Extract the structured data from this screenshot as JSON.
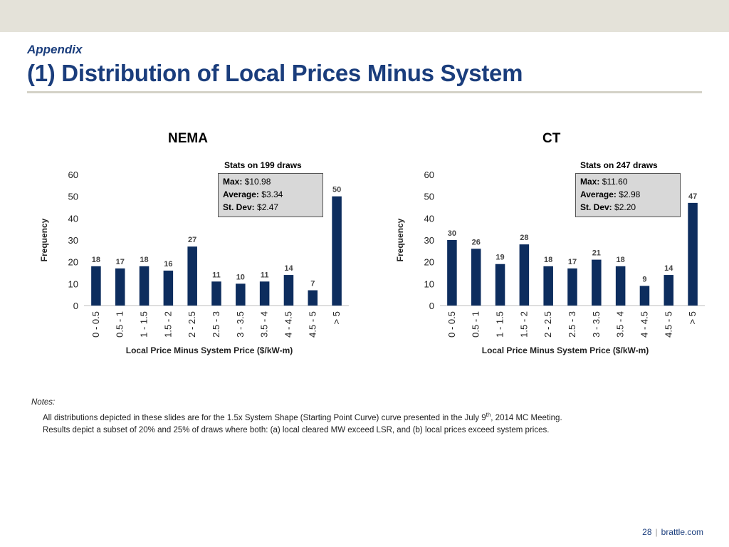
{
  "header": {
    "section": "Appendix",
    "title": "(1) Distribution of Local Prices Minus System"
  },
  "chart_data": [
    {
      "type": "bar",
      "title": "NEMA",
      "stats_caption": "Stats on 199 draws",
      "stats": [
        {
          "label": "Max:",
          "value": "$10.98"
        },
        {
          "label": "Average:",
          "value": "$3.34"
        },
        {
          "label": "St. Dev:",
          "value": "$2.47"
        }
      ],
      "categories": [
        "0 - 0.5",
        "0.5 - 1",
        "1 - 1.5",
        "1.5 - 2",
        "2 - 2.5",
        "2.5 - 3",
        "3 - 3.5",
        "3.5 - 4",
        "4 - 4.5",
        "4.5 - 5",
        "> 5"
      ],
      "values": [
        18,
        17,
        18,
        16,
        27,
        11,
        10,
        11,
        14,
        7,
        50
      ],
      "xlabel": "Local Price Minus System Price ($/kW-m)",
      "ylabel": "Frequency",
      "ylim": [
        0,
        60
      ],
      "yticks": [
        0,
        10,
        20,
        30,
        40,
        50,
        60
      ],
      "bar_color": "#0d2d5e",
      "grid": false
    },
    {
      "type": "bar",
      "title": "CT",
      "stats_caption": "Stats on 247 draws",
      "stats": [
        {
          "label": "Max:",
          "value": "$11.60"
        },
        {
          "label": "Average:",
          "value": "$2.98"
        },
        {
          "label": "St. Dev:",
          "value": "$2.20"
        }
      ],
      "categories": [
        "0 - 0.5",
        "0.5 - 1",
        "1 - 1.5",
        "1.5 - 2",
        "2 - 2.5",
        "2.5 - 3",
        "3 - 3.5",
        "3.5 - 4",
        "4 - 4.5",
        "4.5 - 5",
        "> 5"
      ],
      "values": [
        30,
        26,
        19,
        28,
        18,
        17,
        21,
        18,
        9,
        14,
        47
      ],
      "xlabel": "Local Price Minus System Price ($/kW-m)",
      "ylabel": "Frequency",
      "ylim": [
        0,
        60
      ],
      "yticks": [
        0,
        10,
        20,
        30,
        40,
        50,
        60
      ],
      "bar_color": "#0d2d5e",
      "grid": false
    }
  ],
  "notes": {
    "heading": "Notes:",
    "line1_before": "All distributions depicted in these slides are for the 1.5x System Shape (Starting Point Curve) curve presented in the July 9",
    "line1_sup": "th",
    "line1_after": ", 2014 MC Meeting.",
    "line2": "Results depict a subset of 20% and 25% of draws where both: (a) local cleared MW exceed LSR, and (b) local prices exceed system prices."
  },
  "footer": {
    "page_number": "28",
    "separator": "|",
    "site": "brattle.com"
  }
}
